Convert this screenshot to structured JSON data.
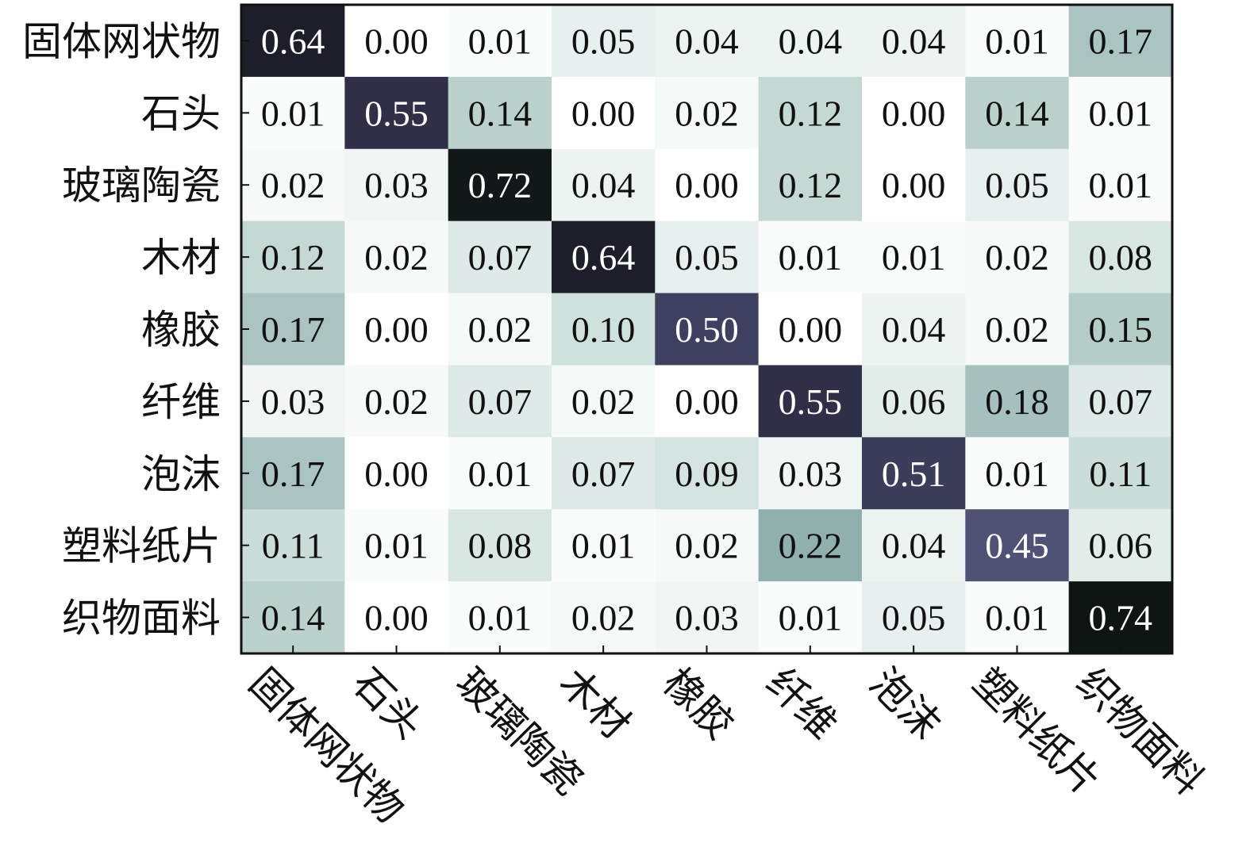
{
  "chart_data": {
    "type": "heatmap",
    "title": "",
    "xlabel": "",
    "ylabel": "",
    "row_labels": [
      "固体网状物",
      "石头",
      "玻璃陶瓷",
      "木材",
      "橡胶",
      "纤维",
      "泡沫",
      "塑料纸片",
      "织物面料"
    ],
    "col_labels": [
      "固体网状物",
      "石头",
      "玻璃陶瓷",
      "木材",
      "橡胶",
      "纤维",
      "泡沫",
      "塑料纸片",
      "织物面料"
    ],
    "values": [
      [
        0.64,
        0.0,
        0.01,
        0.05,
        0.04,
        0.04,
        0.04,
        0.01,
        0.17
      ],
      [
        0.01,
        0.55,
        0.14,
        0.0,
        0.02,
        0.12,
        0.0,
        0.14,
        0.01
      ],
      [
        0.02,
        0.03,
        0.72,
        0.04,
        0.0,
        0.12,
        0.0,
        0.05,
        0.01
      ],
      [
        0.12,
        0.02,
        0.07,
        0.64,
        0.05,
        0.01,
        0.01,
        0.02,
        0.08
      ],
      [
        0.17,
        0.0,
        0.02,
        0.1,
        0.5,
        0.0,
        0.04,
        0.02,
        0.15
      ],
      [
        0.03,
        0.02,
        0.07,
        0.02,
        0.0,
        0.55,
        0.06,
        0.18,
        0.07
      ],
      [
        0.17,
        0.0,
        0.01,
        0.07,
        0.09,
        0.03,
        0.51,
        0.01,
        0.11
      ],
      [
        0.11,
        0.01,
        0.08,
        0.01,
        0.02,
        0.22,
        0.04,
        0.45,
        0.06
      ],
      [
        0.14,
        0.0,
        0.01,
        0.02,
        0.03,
        0.01,
        0.05,
        0.01,
        0.74
      ]
    ],
    "value_range": [
      0,
      0.74
    ],
    "colormap_stops": [
      {
        "value": 0.0,
        "color": "#ffffff"
      },
      {
        "value": 0.1,
        "color": "#cfe1dc"
      },
      {
        "value": 0.22,
        "color": "#90b0ad"
      },
      {
        "value": 0.35,
        "color": "#6b6f92"
      },
      {
        "value": 0.45,
        "color": "#4f5175"
      },
      {
        "value": 0.55,
        "color": "#2f2f48"
      },
      {
        "value": 0.64,
        "color": "#1e1e2b"
      },
      {
        "value": 0.74,
        "color": "#0f1512"
      }
    ],
    "text_color_dark": "#111111",
    "text_color_light": "#ffffff",
    "frame_color": "#111111"
  }
}
